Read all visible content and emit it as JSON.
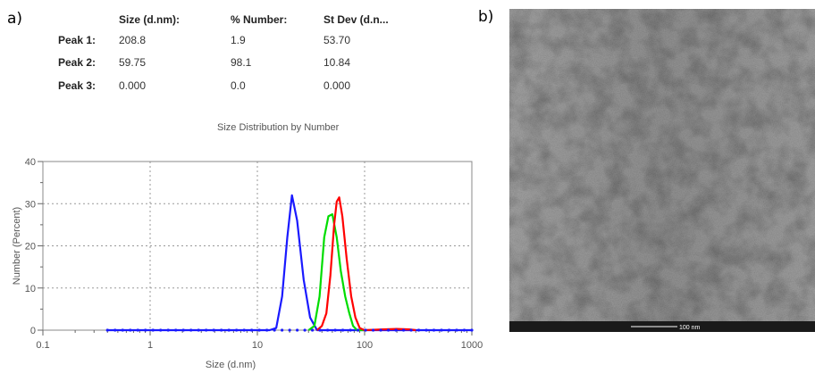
{
  "panels": {
    "a": "a)",
    "b": "b)"
  },
  "table": {
    "headers": [
      "Size (d.nm):",
      "% Number:",
      "St Dev (d.n..."
    ],
    "rows": [
      {
        "label": "Peak 1:",
        "size": "208.8",
        "percent": "1.9",
        "stdev": "53.70"
      },
      {
        "label": "Peak 2:",
        "size": "59.75",
        "percent": "98.1",
        "stdev": "10.84"
      },
      {
        "label": "Peak 3:",
        "size": "0.000",
        "percent": "0.0",
        "stdev": "0.000"
      }
    ]
  },
  "chart_data": {
    "type": "line",
    "title": "Size Distribution by Number",
    "xlabel": "Size (d.nm)",
    "ylabel": "Number (Percent)",
    "xscale": "log",
    "xlim": [
      0.1,
      1000
    ],
    "ylim": [
      0,
      40
    ],
    "xticks": [
      0.1,
      1,
      10,
      100,
      1000
    ],
    "xtick_labels": [
      "0.1",
      "1",
      "10",
      "100",
      "1000"
    ],
    "yticks": [
      0,
      10,
      20,
      30,
      40
    ],
    "ytick_labels": [
      "0",
      "10",
      "20",
      "30",
      "40"
    ],
    "grid": true,
    "series": [
      {
        "color": "#1a1aff",
        "x": [
          0.4,
          1,
          5,
          13,
          15,
          17,
          19,
          21,
          23.5,
          27,
          31,
          36,
          50,
          100,
          1000
        ],
        "y": [
          0,
          0,
          0,
          0,
          0.5,
          8,
          22,
          32,
          26,
          12,
          3,
          0,
          0,
          0,
          0
        ]
      },
      {
        "color": "#00dd00",
        "x": [
          30,
          34,
          38,
          42,
          46,
          50,
          55,
          60,
          66,
          72,
          78,
          85,
          100
        ],
        "y": [
          0,
          1,
          8,
          22,
          27,
          27.5,
          22,
          14,
          8,
          4,
          1,
          0,
          0
        ]
      },
      {
        "color": "#ff0000",
        "x": [
          36,
          40,
          44,
          48,
          52,
          55,
          58,
          62,
          68,
          75,
          82,
          90,
          100,
          150,
          200,
          260,
          300
        ],
        "y": [
          0,
          1,
          4,
          13,
          25,
          30.5,
          31.5,
          27,
          17,
          8,
          3,
          0.5,
          0,
          0.2,
          0.3,
          0.2,
          0
        ]
      }
    ]
  },
  "tem": {
    "scale_bar_label": "100 nm"
  }
}
